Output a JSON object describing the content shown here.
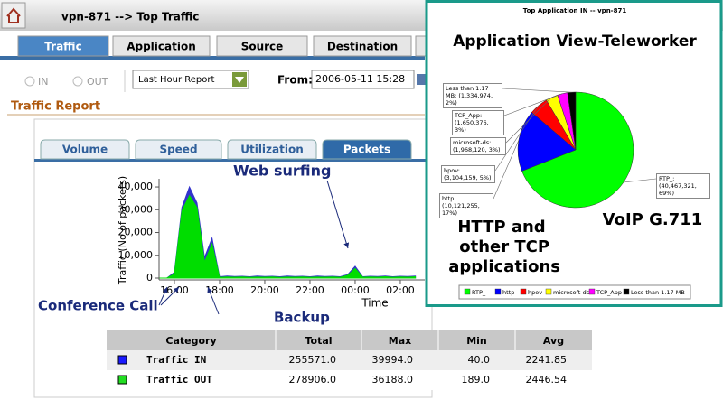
{
  "header": {
    "title": "vpn-871 --> Top Traffic"
  },
  "tabs": [
    "Traffic",
    "Application",
    "Source",
    "Destination"
  ],
  "controls": {
    "in": "IN",
    "out": "OUT",
    "report": "Last Hour Report",
    "from_label": "From:",
    "from_value": "2006-05-11 15:28"
  },
  "section_title": "Traffic Report",
  "subtabs": [
    "Volume",
    "Speed",
    "Utilization",
    "Packets"
  ],
  "annotations": {
    "web": "Web surfing",
    "conference": "Conference Call",
    "backup": "Backup",
    "app_view": "Application View-Teleworker",
    "http": "HTTP and other TCP applications",
    "voip": "VoIP G.711"
  },
  "chart_data": [
    {
      "type": "area",
      "x_label": "Time",
      "y_label": "Traffic (No of packets)",
      "categories": [
        null,
        null,
        "16:00",
        null,
        null,
        null,
        null,
        null,
        "18:00",
        null,
        null,
        null,
        null,
        null,
        "20:00",
        null,
        null,
        null,
        null,
        null,
        "22:00",
        null,
        null,
        null,
        null,
        null,
        "00:00",
        null,
        null,
        null,
        null,
        null,
        "02:00",
        null,
        null
      ],
      "series": [
        {
          "color": "#3333cc",
          "values": [
            0,
            0,
            2500,
            31000,
            39994,
            33000,
            9000,
            17500,
            600,
            900,
            700,
            800,
            600,
            900,
            700,
            800,
            600,
            900,
            700,
            800,
            600,
            900,
            700,
            800,
            600,
            1500,
            5200,
            600,
            800,
            700,
            900,
            600,
            800,
            700,
            900
          ]
        },
        {
          "color": "#00dd00",
          "values": [
            0,
            0,
            1800,
            29500,
            36188,
            31000,
            7000,
            15000,
            300,
            500,
            400,
            500,
            350,
            450,
            400,
            500,
            300,
            450,
            400,
            500,
            350,
            450,
            400,
            500,
            350,
            1200,
            4200,
            400,
            500,
            400,
            600,
            350,
            500,
            400,
            600
          ]
        }
      ],
      "ylim": [
        0,
        42000
      ],
      "yticks": [
        {
          "value": 0,
          "label": "0"
        },
        {
          "value": 10000,
          "label": "10,000"
        },
        {
          "value": 20000,
          "label": "20,000"
        },
        {
          "value": 30000,
          "label": "30,000"
        },
        {
          "value": 40000,
          "label": "40,000"
        }
      ]
    },
    {
      "type": "pie",
      "title": "Top Application IN -- vpn-871",
      "categories": [
        "RTP_",
        "http",
        "hpov",
        "microsoft-ds",
        "TCP_App",
        "Less than 1.17 MB"
      ],
      "values": [
        40467321,
        10121255,
        3104159,
        1968120,
        1650376,
        1334974
      ],
      "value_labels": [
        "RTP_: (40,467,321, 69%)",
        "http: (10,121,255, 17%)",
        "hpov: (3,104,159, 5%)",
        "microsoft-ds: (1,968,120, 3%)",
        "TCP_App: (1,650,376, 3%)",
        "Less than 1.17 MB: (1,334,974, 2%)"
      ],
      "colors": [
        "#00ff00",
        "#0000ff",
        "#ff0000",
        "#ffff00",
        "#ff00ff",
        "#000000"
      ]
    }
  ],
  "table": {
    "columns": [
      "Category",
      "Total",
      "Max",
      "Min",
      "Avg"
    ],
    "rows": [
      [
        "Traffic IN",
        "255571.0",
        "39994.0",
        "40.0",
        "2241.85"
      ],
      [
        "Traffic OUT",
        "278906.0",
        "36188.0",
        "189.0",
        "2446.54"
      ]
    ],
    "colors": [
      "#1a1aff",
      "#22dd22"
    ]
  }
}
